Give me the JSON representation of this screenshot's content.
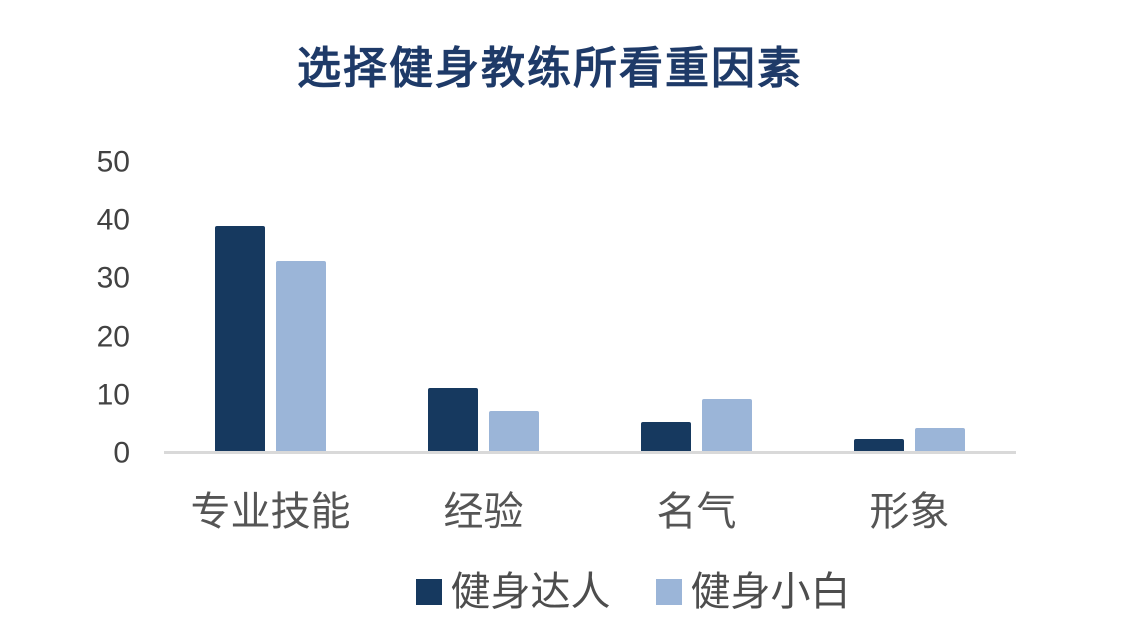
{
  "chart_data": {
    "type": "bar",
    "title": "选择健身教练所看重因素",
    "categories": [
      "专业技能",
      "经验",
      "名气",
      "形象"
    ],
    "series": [
      {
        "name": "健身达人",
        "color": "#16395f",
        "values": [
          39,
          11,
          5,
          2
        ]
      },
      {
        "name": "健身小白",
        "color": "#9bb5d8",
        "values": [
          33,
          7,
          9,
          4
        ]
      }
    ],
    "xlabel": "",
    "ylabel": "",
    "ylim": [
      0,
      50
    ],
    "yticks": [
      0,
      10,
      20,
      30,
      40,
      50
    ],
    "grid": false,
    "legend_position": "bottom",
    "colors": {
      "title": "#1e3a68",
      "axis_line": "#d9d9d9",
      "tick_text": "#424242",
      "category_text": "#555555",
      "legend_text": "#4d4d4d",
      "background": "#ffffff"
    }
  }
}
